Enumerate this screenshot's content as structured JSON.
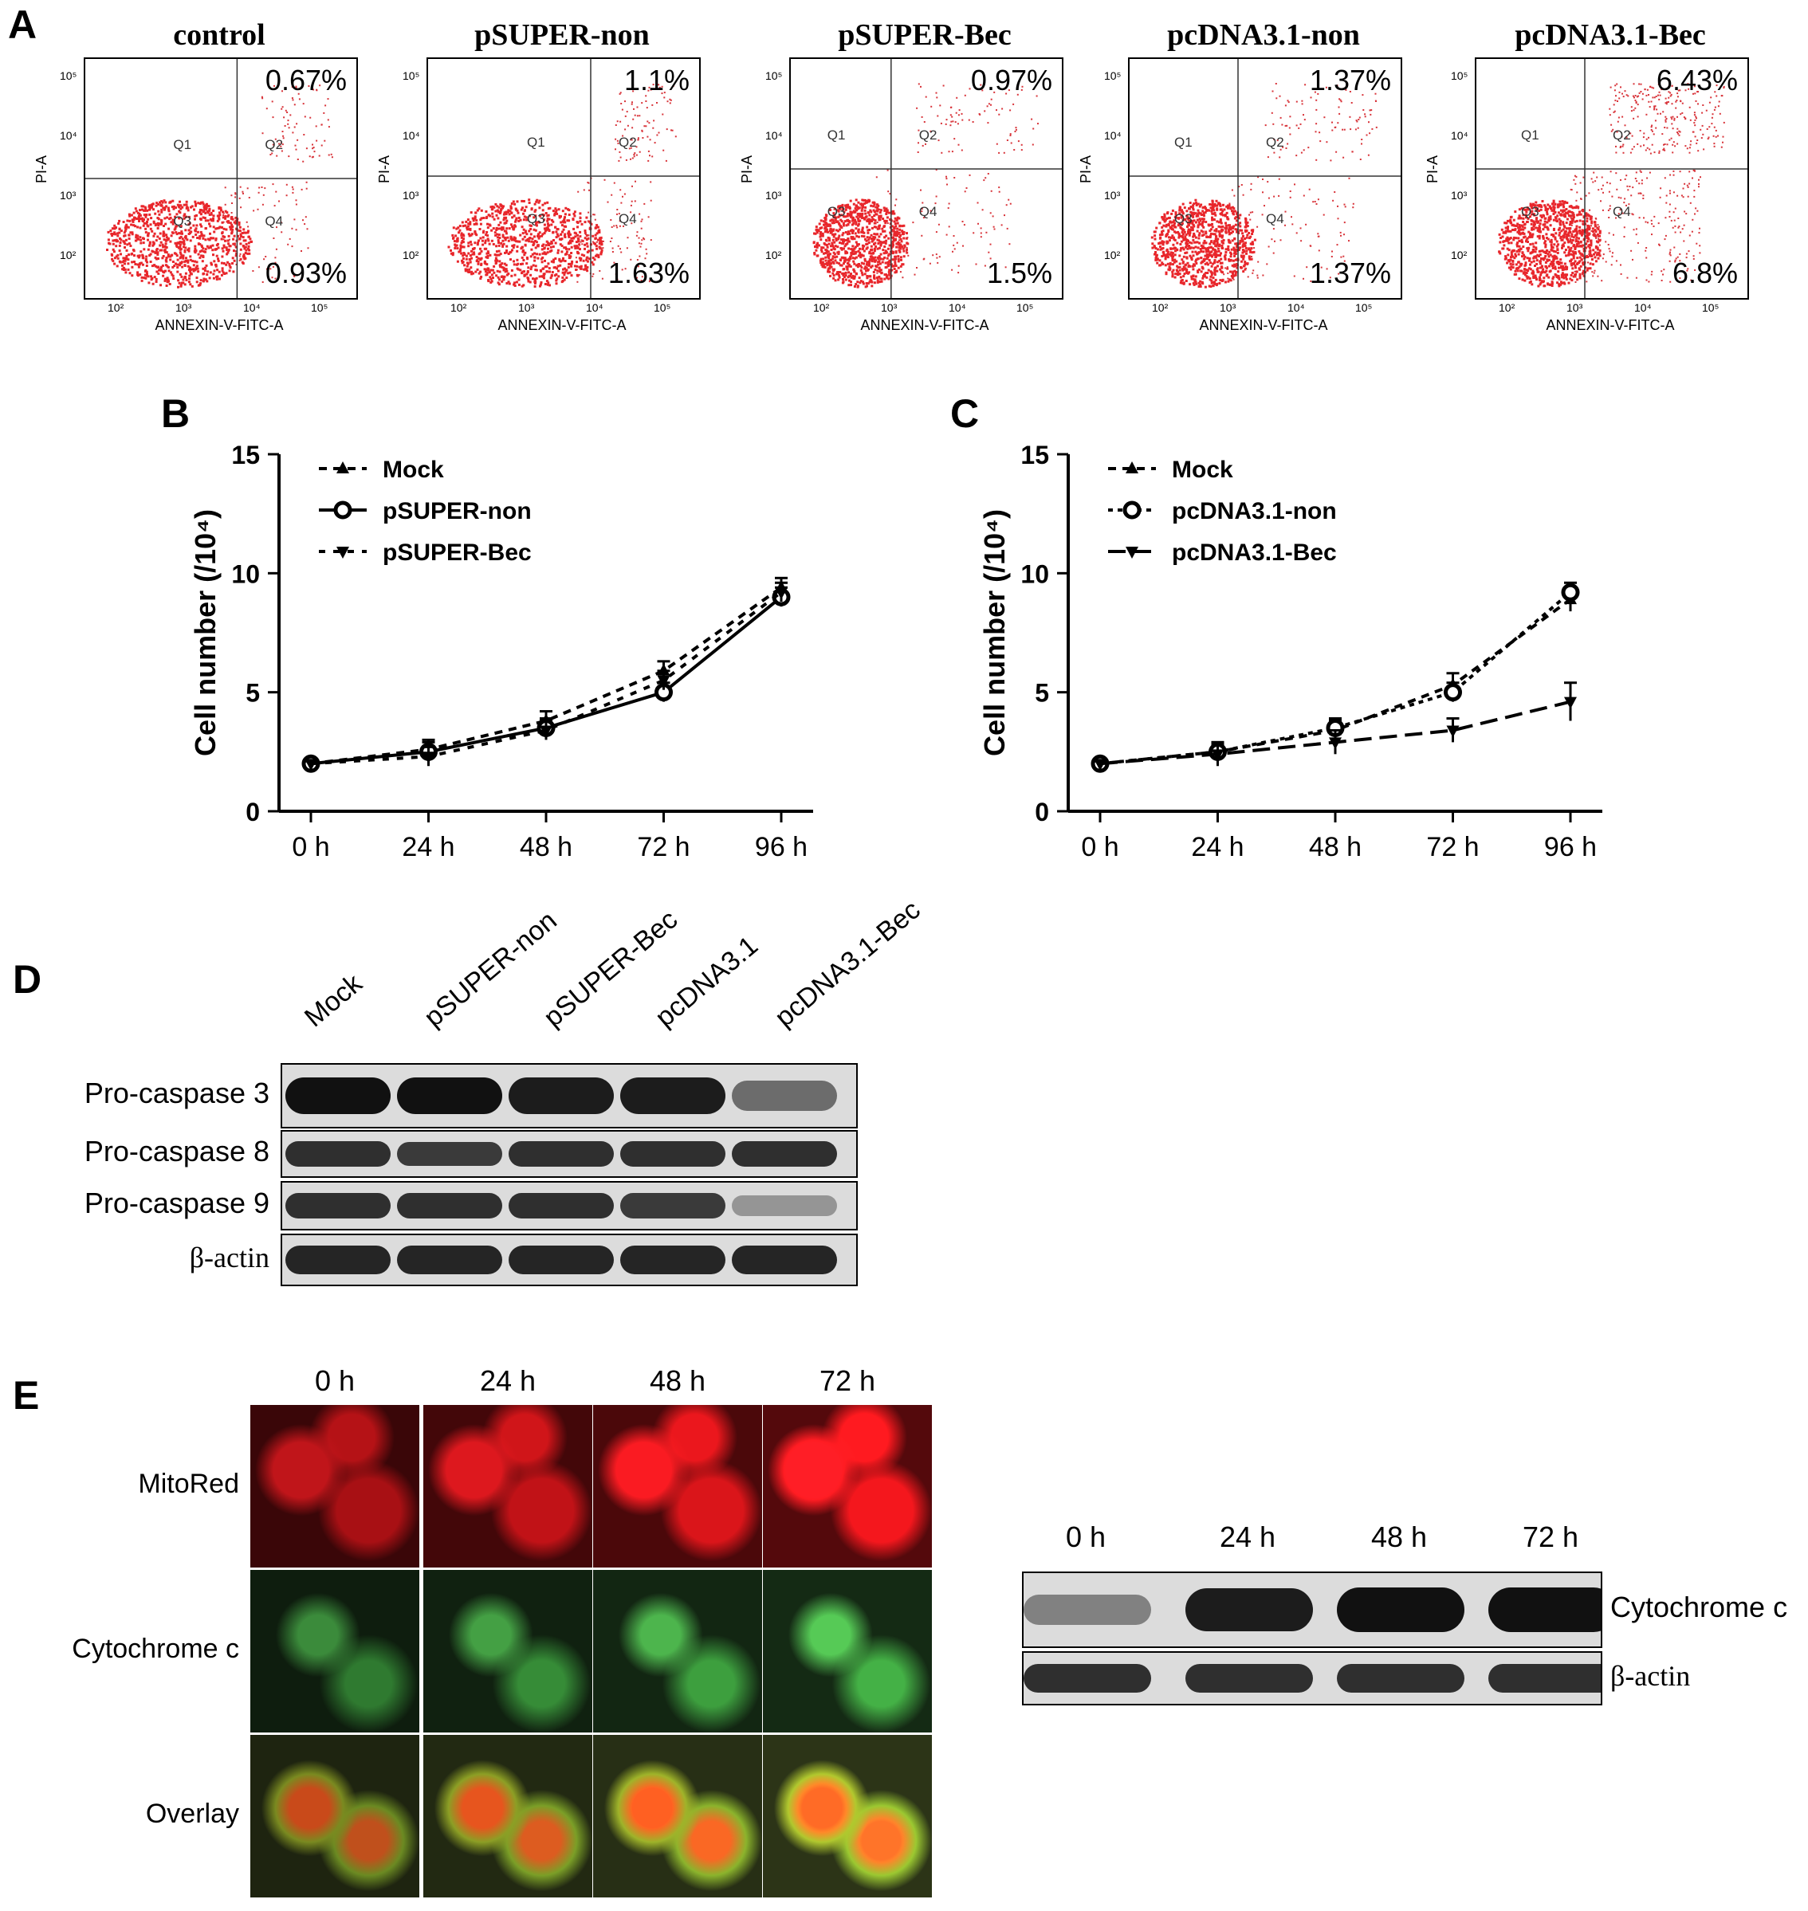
{
  "panels": {
    "a": "A",
    "b": "B",
    "c": "C",
    "d": "D",
    "e": "E"
  },
  "flow_cytometry": {
    "x_axis_label": "ANNEXIN-V-FITC-A",
    "y_axis_label": "PI-A",
    "x_ticks": [
      "10²",
      "10³",
      "10⁴",
      "10⁵"
    ],
    "y_ticks": [
      "10²",
      "10³",
      "10⁴",
      "10⁵"
    ],
    "quadrant_labels": [
      "Q1",
      "Q2",
      "Q3",
      "Q4"
    ],
    "plots": [
      {
        "title": "control",
        "q2": "0.67%",
        "q4": "0.93%"
      },
      {
        "title": "pSUPER-non",
        "q2": "1.1%",
        "q4": "1.63%"
      },
      {
        "title": "pSUPER-Bec",
        "q2": "0.97%",
        "q4": "1.5%"
      },
      {
        "title": "pcDNA3.1-non",
        "q2": "1.37%",
        "q4": "1.37%"
      },
      {
        "title": "pcDNA3.1-Bec",
        "q2": "6.43%",
        "q4": "6.8%"
      }
    ]
  },
  "chart_data": [
    {
      "type": "line",
      "ylabel": "Cell number (/10⁴)",
      "categories": [
        "0 h",
        "24 h",
        "48 h",
        "72 h",
        "96 h"
      ],
      "ylim": [
        0,
        15
      ],
      "yticks": [
        "0",
        "5",
        "10",
        "15"
      ],
      "legend_position": "top-left",
      "series": [
        {
          "name": "Mock",
          "values": [
            2.0,
            2.6,
            3.8,
            5.9,
            9.4
          ],
          "errors": [
            0.1,
            0.4,
            0.4,
            0.4,
            0.4
          ],
          "marker": "triangle-up",
          "dash": "10,8",
          "color": "#000000"
        },
        {
          "name": "pSUPER-non",
          "values": [
            2.0,
            2.5,
            3.5,
            5.0,
            9.0
          ],
          "errors": [
            0.1,
            0.4,
            0.4,
            0.4,
            0.4
          ],
          "marker": "circle",
          "dash": "",
          "color": "#000000"
        },
        {
          "name": "pSUPER-Bec",
          "values": [
            2.0,
            2.3,
            3.4,
            5.5,
            9.2
          ],
          "errors": [
            0.1,
            0.4,
            0.4,
            0.4,
            0.4
          ],
          "marker": "triangle-down",
          "dash": "8,10",
          "color": "#000000"
        }
      ]
    },
    {
      "type": "line",
      "ylabel": "Cell number (/10⁴)",
      "categories": [
        "0 h",
        "24 h",
        "48 h",
        "72 h",
        "96 h"
      ],
      "ylim": [
        0,
        15
      ],
      "yticks": [
        "0",
        "5",
        "10",
        "15"
      ],
      "legend_position": "top-left",
      "series": [
        {
          "name": "Mock",
          "values": [
            2.0,
            2.5,
            3.4,
            5.3,
            8.9
          ],
          "errors": [
            0.1,
            0.3,
            0.4,
            0.5,
            0.5
          ],
          "marker": "triangle-up",
          "dash": "10,8",
          "color": "#000000"
        },
        {
          "name": "pcDNA3.1-non",
          "values": [
            2.0,
            2.5,
            3.5,
            5.0,
            9.2
          ],
          "errors": [
            0.1,
            0.4,
            0.4,
            0.4,
            0.4
          ],
          "marker": "circle",
          "dash": "6,6",
          "color": "#000000"
        },
        {
          "name": "pcDNA3.1-Bec",
          "values": [
            2.0,
            2.4,
            2.9,
            3.4,
            4.6
          ],
          "errors": [
            0.1,
            0.5,
            0.5,
            0.5,
            0.8
          ],
          "marker": "triangle-down",
          "dash": "22,10",
          "color": "#000000"
        }
      ]
    }
  ],
  "western_d": {
    "lanes": [
      "Mock",
      "pSUPER-non",
      "pSUPER-Bec",
      "pcDNA3.1",
      "pcDNA3.1-Bec"
    ],
    "rows": [
      "Pro-caspase 3",
      "Pro-caspase 8",
      "Pro-caspase 9",
      "β-actin"
    ]
  },
  "panel_e": {
    "times": [
      "0 h",
      "24 h",
      "48 h",
      "72 h"
    ],
    "rows": [
      "MitoRed",
      "Cytochrome c",
      "Overlay"
    ],
    "blot_times": [
      "0 h",
      "24 h",
      "48 h",
      "72 h"
    ],
    "blot_rows": [
      "Cytochrome c",
      "β-actin"
    ]
  }
}
